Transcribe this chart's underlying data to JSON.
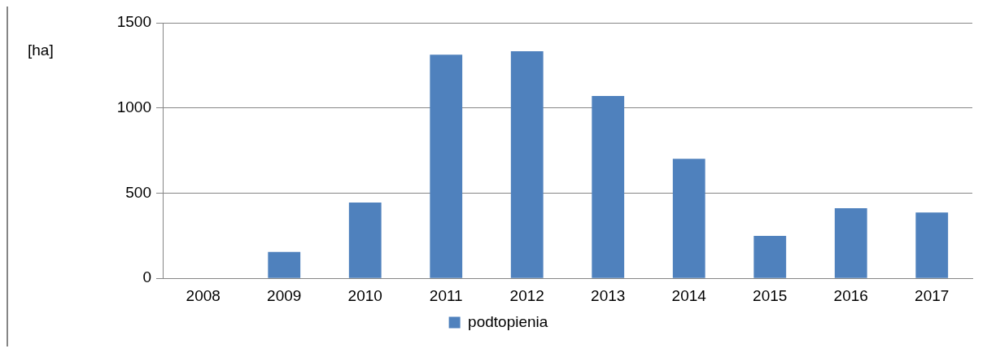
{
  "chart_data": {
    "type": "bar",
    "ylabel": "[ha]",
    "categories": [
      "2008",
      "2009",
      "2010",
      "2011",
      "2012",
      "2013",
      "2014",
      "2015",
      "2016",
      "2017"
    ],
    "series": [
      {
        "name": "podtopienia",
        "color": "#4f81bd",
        "values": [
          0,
          155,
          445,
          1313,
          1333,
          1070,
          702,
          249,
          412,
          386
        ]
      }
    ],
    "ylim": [
      0,
      1500
    ],
    "yticks": [
      0,
      500,
      1000,
      1500
    ],
    "grid": "y",
    "legend": "bottom"
  }
}
